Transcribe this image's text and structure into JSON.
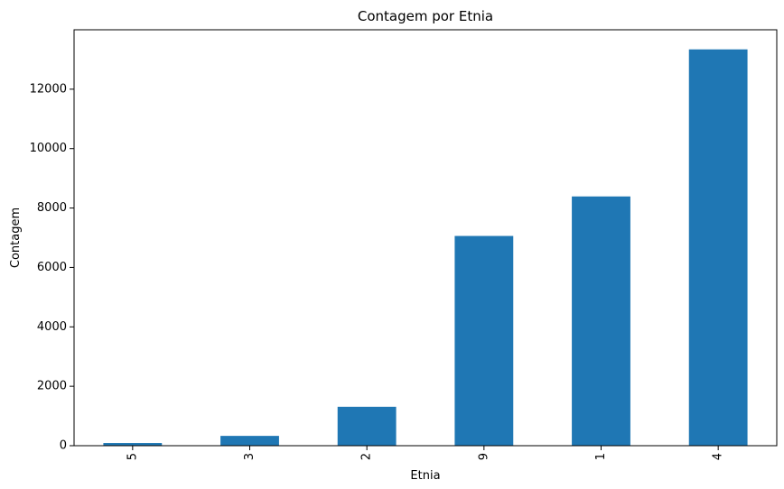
{
  "chart_data": {
    "type": "bar",
    "title": "Contagem por Etnia",
    "xlabel": "Etnia",
    "ylabel": "Contagem",
    "categories": [
      "5",
      "3",
      "2",
      "9",
      "1",
      "4"
    ],
    "values": [
      90,
      330,
      1310,
      7060,
      8390,
      13340
    ],
    "ylim": [
      0,
      14000
    ],
    "yticks": [
      0,
      2000,
      4000,
      6000,
      8000,
      10000,
      12000
    ],
    "bar_color": "#1f77b4",
    "grid": false,
    "legend": "none",
    "xtick_rotation": 90
  }
}
